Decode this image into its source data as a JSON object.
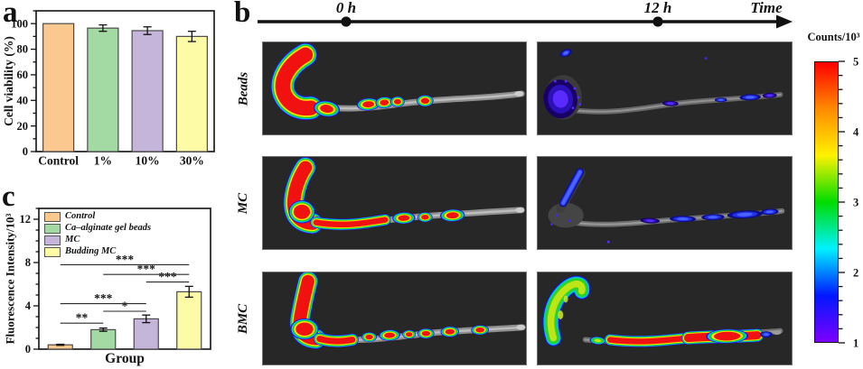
{
  "panels": {
    "a": {
      "label": "a",
      "chart_data": {
        "type": "bar",
        "categories": [
          "Control",
          "1%",
          "10%",
          "30%"
        ],
        "values": [
          100,
          96.5,
          94.5,
          90
        ],
        "errors": [
          0,
          2.5,
          3,
          4
        ],
        "bar_colors": [
          "#fbc98f",
          "#a3daa3",
          "#c6b5da",
          "#fdfba5"
        ],
        "ylabel": "Cell viability (%)",
        "ylim": [
          0,
          110
        ],
        "yticks": [
          0,
          20,
          40,
          60,
          80,
          100
        ],
        "minor_step": 10,
        "grid": "off",
        "legend_position": "none"
      }
    },
    "b": {
      "label": "b",
      "timeline": {
        "tick0": "0 h",
        "tick1": "12 h",
        "axis_label": "Time"
      },
      "rows": [
        {
          "label": "Beads",
          "t0": "strong red-hot signal in stomach and proximal intestine",
          "t12": "weak purple signal mostly in stomach"
        },
        {
          "label": "MC",
          "t0": "strong red-hot signal in stomach and proximal intestine",
          "t12": "weak blue signal along distal intestine"
        },
        {
          "label": "BMC",
          "t0": "strong red-hot signal in stomach and along intestine",
          "t12": "green stomach with strong red signal along intestine"
        }
      ],
      "colorbar": {
        "title": "Counts/10³",
        "max": 5,
        "min": 1,
        "ticks": [
          5,
          4,
          3,
          2,
          1
        ],
        "minor_step": 0.2,
        "gradient": [
          "#ff0000",
          "#ff8a00",
          "#fff200",
          "#00dc00",
          "#00f2ff",
          "#0018ff",
          "#7c00ff"
        ]
      }
    },
    "c": {
      "label": "c",
      "chart_data": {
        "type": "bar",
        "categories": [
          "Control",
          "Ca–alginate gel beads",
          "MC",
          "Budding MC"
        ],
        "values": [
          0.4,
          1.8,
          2.8,
          5.3
        ],
        "errors": [
          0.05,
          0.15,
          0.35,
          0.5
        ],
        "bar_colors": [
          "#fbc98f",
          "#a3daa3",
          "#c6b5da",
          "#fdfba5"
        ],
        "ylabel": "Fluorescence Intensity/10³",
        "xlabel": "Group",
        "ylim": [
          0,
          13
        ],
        "yticks": [
          0,
          4,
          8,
          12
        ],
        "minor_step": 1,
        "grid": "off",
        "legend": [
          "Control",
          "Ca–alginate gel beads",
          "MC",
          "Budding MC"
        ],
        "legend_position": "upper-left",
        "significance": [
          {
            "from": 0,
            "to": 1,
            "y": 2.4,
            "stars": "**"
          },
          {
            "from": 1,
            "to": 2,
            "y": 3.5,
            "stars": "*"
          },
          {
            "from": 0,
            "to": 2,
            "y": 4.2,
            "stars": "***"
          },
          {
            "from": 2,
            "to": 3,
            "y": 6.2,
            "stars": "***"
          },
          {
            "from": 1,
            "to": 3,
            "y": 6.9,
            "stars": "***"
          },
          {
            "from": 0,
            "to": 3,
            "y": 7.8,
            "stars": "***"
          }
        ]
      }
    }
  }
}
